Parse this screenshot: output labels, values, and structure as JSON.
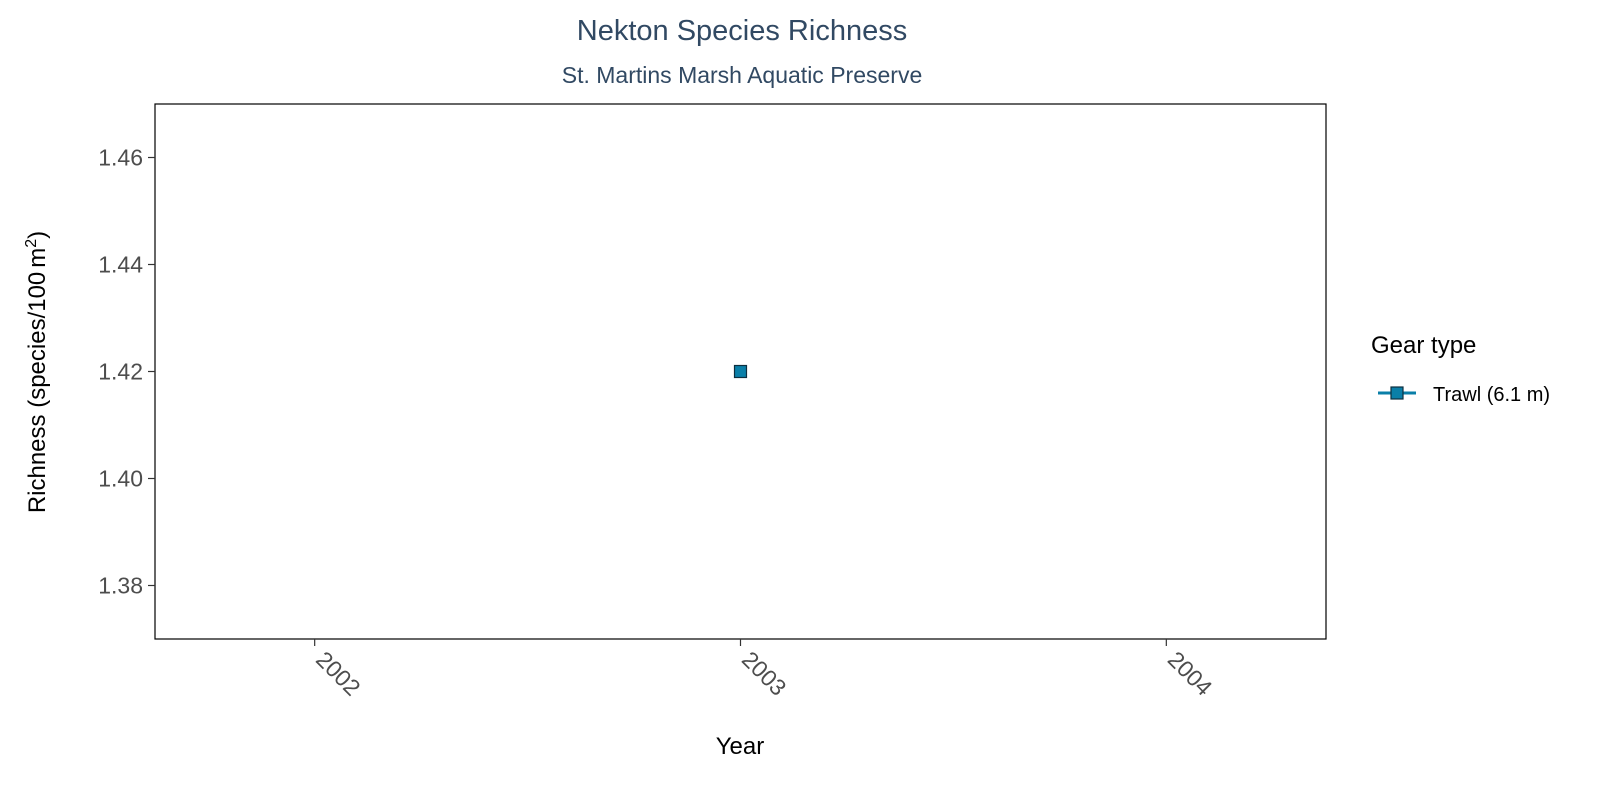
{
  "chart_data": {
    "type": "scatter",
    "title": "Nekton Species Richness",
    "subtitle": "St. Martins Marsh Aquatic Preserve",
    "xlabel": "Year",
    "ylabel_main": "Richness (species/100",
    "ylabel_unit": "m",
    "ylabel_sup": "2",
    "ylabel_close": ")",
    "x_ticks": [
      "2002",
      "2003",
      "2004"
    ],
    "x_range": [
      2001.625,
      2004.375
    ],
    "y_ticks": [
      "1.38",
      "1.40",
      "1.42",
      "1.44",
      "1.46"
    ],
    "y_range": [
      1.37,
      1.47
    ],
    "grid": false,
    "legend_position": "right",
    "series": [
      {
        "name": "Trawl (6.1 m)",
        "color": "#0a7fa8",
        "marker": "square",
        "x": [
          2003
        ],
        "y": [
          1.42
        ]
      }
    ]
  },
  "legend": {
    "title": "Gear type"
  }
}
